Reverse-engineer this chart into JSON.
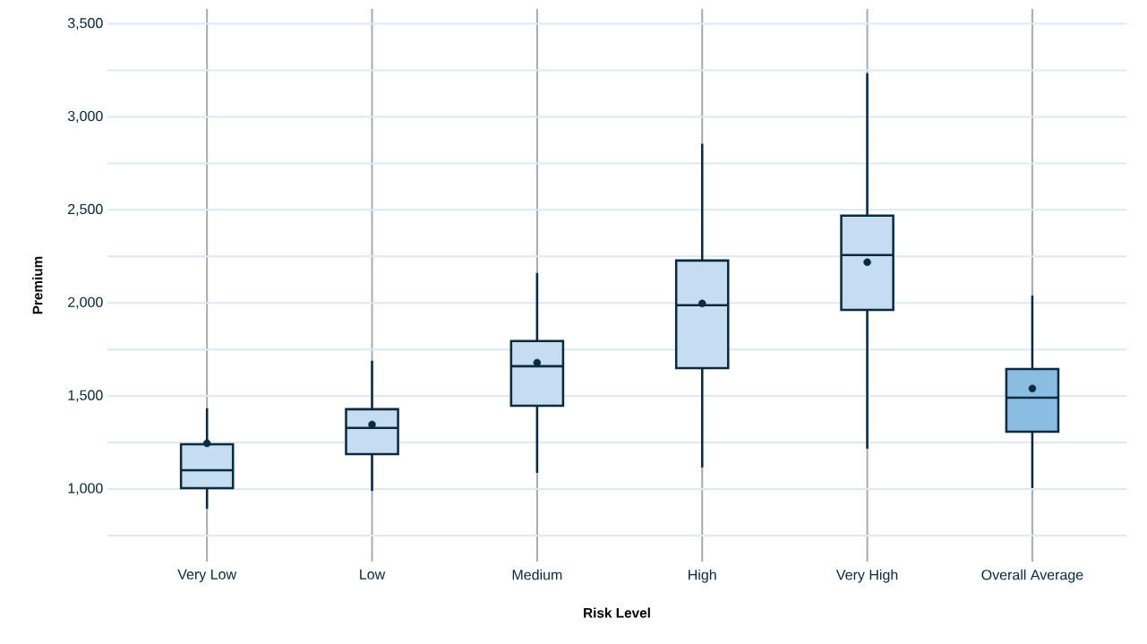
{
  "chart_data": {
    "type": "box",
    "xlabel": "Risk Level",
    "ylabel": "Premium",
    "categories": [
      "Very Low",
      "Low",
      "Medium",
      "High",
      "Very High",
      "Overall Average"
    ],
    "colors": [
      "#c6dcf0",
      "#c6dcf0",
      "#c6dcf0",
      "#c6dcf0",
      "#c6dcf0",
      "#8bbde3"
    ],
    "boxes": [
      {
        "low": 894,
        "q1": 1005,
        "median": 1101,
        "q3": 1241,
        "high": 1434,
        "mean": 1246
      },
      {
        "low": 990,
        "q1": 1188,
        "median": 1328,
        "q3": 1429,
        "high": 1689,
        "mean": 1347
      },
      {
        "low": 1087,
        "q1": 1448,
        "median": 1660,
        "q3": 1795,
        "high": 2161,
        "mean": 1679
      },
      {
        "low": 1116,
        "q1": 1650,
        "median": 1988,
        "q3": 2228,
        "high": 2855,
        "mean": 1997
      },
      {
        "low": 1217,
        "q1": 1963,
        "median": 2257,
        "q3": 2469,
        "high": 3235,
        "mean": 2219
      },
      {
        "low": 1005,
        "q1": 1308,
        "median": 1491,
        "q3": 1645,
        "high": 2040,
        "mean": 1540
      }
    ],
    "ylim": [
      610,
      3580
    ],
    "yticks": [
      {
        "value": 750,
        "label": null
      },
      {
        "value": 1000,
        "label": "1,000"
      },
      {
        "value": 1250,
        "label": null
      },
      {
        "value": 1500,
        "label": "1,500"
      },
      {
        "value": 1750,
        "label": null
      },
      {
        "value": 2000,
        "label": "2,000"
      },
      {
        "value": 2250,
        "label": null
      },
      {
        "value": 2500,
        "label": "2,500"
      },
      {
        "value": 2750,
        "label": null
      },
      {
        "value": 3000,
        "label": "3,000"
      },
      {
        "value": 3250,
        "label": null
      },
      {
        "value": 3500,
        "label": "3,500"
      }
    ],
    "grid": true
  }
}
